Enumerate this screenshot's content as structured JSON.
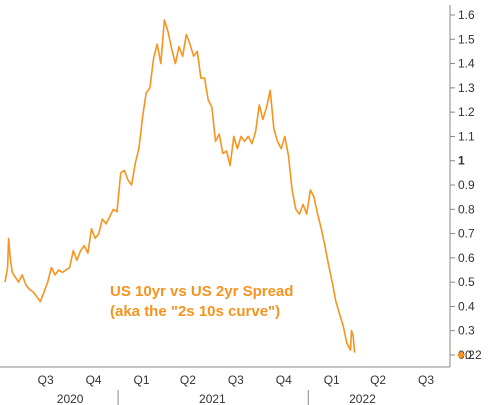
{
  "colors": {
    "line": "#F7931E",
    "axis": "#888888",
    "text": "#333333",
    "background": "#ffffff"
  },
  "chart_data": {
    "type": "line",
    "title": "",
    "xlabel": "",
    "ylabel": "",
    "grid": false,
    "legend": "none",
    "ylim": [
      0.2,
      1.6
    ],
    "y_ticks": [
      {
        "value": 1.6,
        "label": "1.6"
      },
      {
        "value": 1.5,
        "label": "1.5"
      },
      {
        "value": 1.4,
        "label": "1.4"
      },
      {
        "value": 1.3,
        "label": "1.3"
      },
      {
        "value": 1.2,
        "label": "1.2"
      },
      {
        "value": 1.1,
        "label": "1.1"
      },
      {
        "value": 1.0,
        "label": "1",
        "bold": true
      },
      {
        "value": 0.9,
        "label": "0.9"
      },
      {
        "value": 0.8,
        "label": "0.8"
      },
      {
        "value": 0.7,
        "label": "0.7"
      },
      {
        "value": 0.6,
        "label": "0.6"
      },
      {
        "value": 0.5,
        "label": "0.5"
      },
      {
        "value": 0.4,
        "label": "0.4"
      },
      {
        "value": 0.3,
        "label": "0.3"
      },
      {
        "value": 0.2,
        "label": "0.2"
      }
    ],
    "x_range": [
      "2020-05-29",
      "2022-09-30"
    ],
    "x_ticks": [
      {
        "date": "2020-08-15",
        "label": "Q3"
      },
      {
        "date": "2020-11-15",
        "label": "Q4"
      },
      {
        "date": "2021-02-15",
        "label": "Q1"
      },
      {
        "date": "2021-05-15",
        "label": "Q2"
      },
      {
        "date": "2021-08-15",
        "label": "Q3"
      },
      {
        "date": "2021-11-15",
        "label": "Q4"
      },
      {
        "date": "2022-02-15",
        "label": "Q1"
      },
      {
        "date": "2022-05-15",
        "label": "Q2"
      },
      {
        "date": "2022-08-15",
        "label": "Q3"
      }
    ],
    "year_labels": [
      {
        "date": "2020-10-01",
        "label": "2020"
      },
      {
        "date": "2021-07-01",
        "label": "2021"
      },
      {
        "date": "2022-04-15",
        "label": "2022"
      }
    ],
    "year_dividers": [
      "2021-01-01",
      "2022-01-01"
    ],
    "last_value_marker": {
      "value": 0.2,
      "label": "0.2"
    },
    "annotation": {
      "lines": [
        "US 10yr vs US 2yr Spread",
        "(aka the \"2s 10s curve\")"
      ]
    },
    "series": [
      {
        "points": [
          [
            "2020-05-29",
            0.5
          ],
          [
            "2020-06-03",
            0.56
          ],
          [
            "2020-06-05",
            0.68
          ],
          [
            "2020-06-08",
            0.6
          ],
          [
            "2020-06-12",
            0.54
          ],
          [
            "2020-06-18",
            0.52
          ],
          [
            "2020-06-24",
            0.5
          ],
          [
            "2020-07-01",
            0.53
          ],
          [
            "2020-07-08",
            0.49
          ],
          [
            "2020-07-15",
            0.47
          ],
          [
            "2020-07-22",
            0.46
          ],
          [
            "2020-07-29",
            0.44
          ],
          [
            "2020-08-05",
            0.42
          ],
          [
            "2020-08-12",
            0.46
          ],
          [
            "2020-08-19",
            0.5
          ],
          [
            "2020-08-26",
            0.56
          ],
          [
            "2020-09-02",
            0.53
          ],
          [
            "2020-09-09",
            0.55
          ],
          [
            "2020-09-16",
            0.54
          ],
          [
            "2020-09-23",
            0.55
          ],
          [
            "2020-09-30",
            0.56
          ],
          [
            "2020-10-07",
            0.63
          ],
          [
            "2020-10-14",
            0.59
          ],
          [
            "2020-10-21",
            0.63
          ],
          [
            "2020-10-28",
            0.65
          ],
          [
            "2020-11-04",
            0.62
          ],
          [
            "2020-11-11",
            0.72
          ],
          [
            "2020-11-18",
            0.68
          ],
          [
            "2020-11-25",
            0.7
          ],
          [
            "2020-12-02",
            0.76
          ],
          [
            "2020-12-09",
            0.74
          ],
          [
            "2020-12-16",
            0.77
          ],
          [
            "2020-12-23",
            0.8
          ],
          [
            "2020-12-30",
            0.79
          ],
          [
            "2021-01-06",
            0.95
          ],
          [
            "2021-01-13",
            0.96
          ],
          [
            "2021-01-20",
            0.92
          ],
          [
            "2021-01-27",
            0.9
          ],
          [
            "2021-02-03",
            0.99
          ],
          [
            "2021-02-10",
            1.05
          ],
          [
            "2021-02-17",
            1.18
          ],
          [
            "2021-02-24",
            1.28
          ],
          [
            "2021-03-03",
            1.3
          ],
          [
            "2021-03-10",
            1.42
          ],
          [
            "2021-03-17",
            1.48
          ],
          [
            "2021-03-24",
            1.4
          ],
          [
            "2021-03-31",
            1.58
          ],
          [
            "2021-04-07",
            1.53
          ],
          [
            "2021-04-14",
            1.46
          ],
          [
            "2021-04-21",
            1.4
          ],
          [
            "2021-04-28",
            1.47
          ],
          [
            "2021-05-05",
            1.43
          ],
          [
            "2021-05-12",
            1.52
          ],
          [
            "2021-05-19",
            1.48
          ],
          [
            "2021-05-26",
            1.43
          ],
          [
            "2021-06-02",
            1.45
          ],
          [
            "2021-06-09",
            1.34
          ],
          [
            "2021-06-16",
            1.34
          ],
          [
            "2021-06-23",
            1.25
          ],
          [
            "2021-06-30",
            1.22
          ],
          [
            "2021-07-07",
            1.08
          ],
          [
            "2021-07-14",
            1.11
          ],
          [
            "2021-07-21",
            1.03
          ],
          [
            "2021-07-28",
            1.04
          ],
          [
            "2021-08-04",
            0.98
          ],
          [
            "2021-08-11",
            1.1
          ],
          [
            "2021-08-18",
            1.05
          ],
          [
            "2021-08-25",
            1.1
          ],
          [
            "2021-09-01",
            1.08
          ],
          [
            "2021-09-08",
            1.1
          ],
          [
            "2021-09-15",
            1.07
          ],
          [
            "2021-09-22",
            1.12
          ],
          [
            "2021-09-29",
            1.23
          ],
          [
            "2021-10-06",
            1.17
          ],
          [
            "2021-10-13",
            1.22
          ],
          [
            "2021-10-20",
            1.29
          ],
          [
            "2021-10-27",
            1.13
          ],
          [
            "2021-11-03",
            1.08
          ],
          [
            "2021-11-10",
            1.05
          ],
          [
            "2021-11-17",
            1.1
          ],
          [
            "2021-11-24",
            1.02
          ],
          [
            "2021-12-01",
            0.88
          ],
          [
            "2021-12-08",
            0.8
          ],
          [
            "2021-12-15",
            0.78
          ],
          [
            "2021-12-22",
            0.82
          ],
          [
            "2021-12-29",
            0.78
          ],
          [
            "2022-01-05",
            0.88
          ],
          [
            "2022-01-12",
            0.85
          ],
          [
            "2022-01-19",
            0.78
          ],
          [
            "2022-01-26",
            0.72
          ],
          [
            "2022-02-02",
            0.65
          ],
          [
            "2022-02-09",
            0.57
          ],
          [
            "2022-02-16",
            0.5
          ],
          [
            "2022-02-23",
            0.42
          ],
          [
            "2022-03-02",
            0.37
          ],
          [
            "2022-03-09",
            0.32
          ],
          [
            "2022-03-16",
            0.25
          ],
          [
            "2022-03-23",
            0.22
          ],
          [
            "2022-03-25",
            0.3
          ],
          [
            "2022-03-28",
            0.28
          ],
          [
            "2022-03-31",
            0.21
          ]
        ]
      }
    ]
  }
}
